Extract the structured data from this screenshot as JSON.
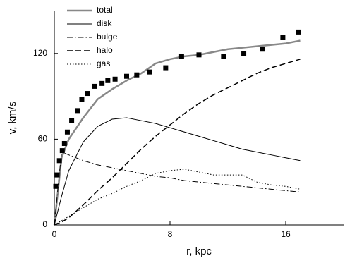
{
  "chart_data": {
    "type": "line",
    "xlabel": "r, kpc",
    "ylabel": "v, km/s",
    "xlim": [
      0,
      20
    ],
    "ylim": [
      0,
      150
    ],
    "xticks": [
      0,
      8,
      16
    ],
    "yticks": [
      0,
      60,
      120
    ],
    "x": [
      0,
      0.5,
      1,
      2,
      3,
      4,
      5,
      6,
      7,
      8,
      9,
      10,
      11,
      12,
      13,
      14,
      15,
      16,
      17
    ],
    "series": [
      {
        "name": "total",
        "color": "#888888",
        "dash": "solid",
        "width": 2.5,
        "values": [
          0,
          47,
          60,
          75,
          88,
          95,
          101,
          106,
          113,
          116,
          118,
          119,
          121,
          123,
          124,
          125,
          126,
          127,
          129
        ]
      },
      {
        "name": "disk",
        "color": "#000000",
        "dash": "solid",
        "width": 1,
        "values": [
          0,
          20,
          38,
          58,
          69,
          74,
          75,
          73,
          71,
          68,
          65,
          62,
          59,
          56,
          53,
          51,
          49,
          47,
          45
        ]
      },
      {
        "name": "bulge",
        "color": "#000000",
        "dash": "dashdot",
        "width": 1,
        "values": [
          0,
          51,
          49,
          45,
          42,
          40,
          38,
          36,
          34,
          33,
          31,
          30,
          29,
          28,
          27,
          26,
          25,
          24,
          23
        ]
      },
      {
        "name": "halo",
        "color": "#000000",
        "dash": "dashed",
        "width": 1.5,
        "values": [
          0,
          2,
          5,
          14,
          24,
          33,
          43,
          53,
          62,
          70,
          78,
          85,
          91,
          96,
          101,
          106,
          110,
          113,
          116
        ]
      },
      {
        "name": "gas",
        "color": "#000000",
        "dash": "dotted",
        "width": 1,
        "values": [
          0,
          3,
          6,
          12,
          18,
          22,
          27,
          31,
          36,
          38,
          39,
          37,
          35,
          35,
          35,
          30,
          28,
          27,
          25
        ]
      }
    ],
    "points": {
      "marker": "square",
      "color": "#000000",
      "x": [
        0.1,
        0.2,
        0.35,
        0.55,
        0.7,
        0.9,
        1.2,
        1.6,
        1.9,
        2.3,
        2.8,
        3.3,
        3.7,
        4.2,
        5.0,
        5.7,
        6.6,
        7.7,
        8.8,
        10.0,
        11.7,
        13.1,
        14.4,
        15.8,
        16.9
      ],
      "y": [
        27,
        35,
        45,
        52,
        57,
        65,
        73,
        80,
        88,
        92,
        97,
        99,
        101,
        102,
        104,
        105,
        107,
        110,
        118,
        119,
        118,
        120,
        123,
        131,
        135
      ]
    }
  }
}
